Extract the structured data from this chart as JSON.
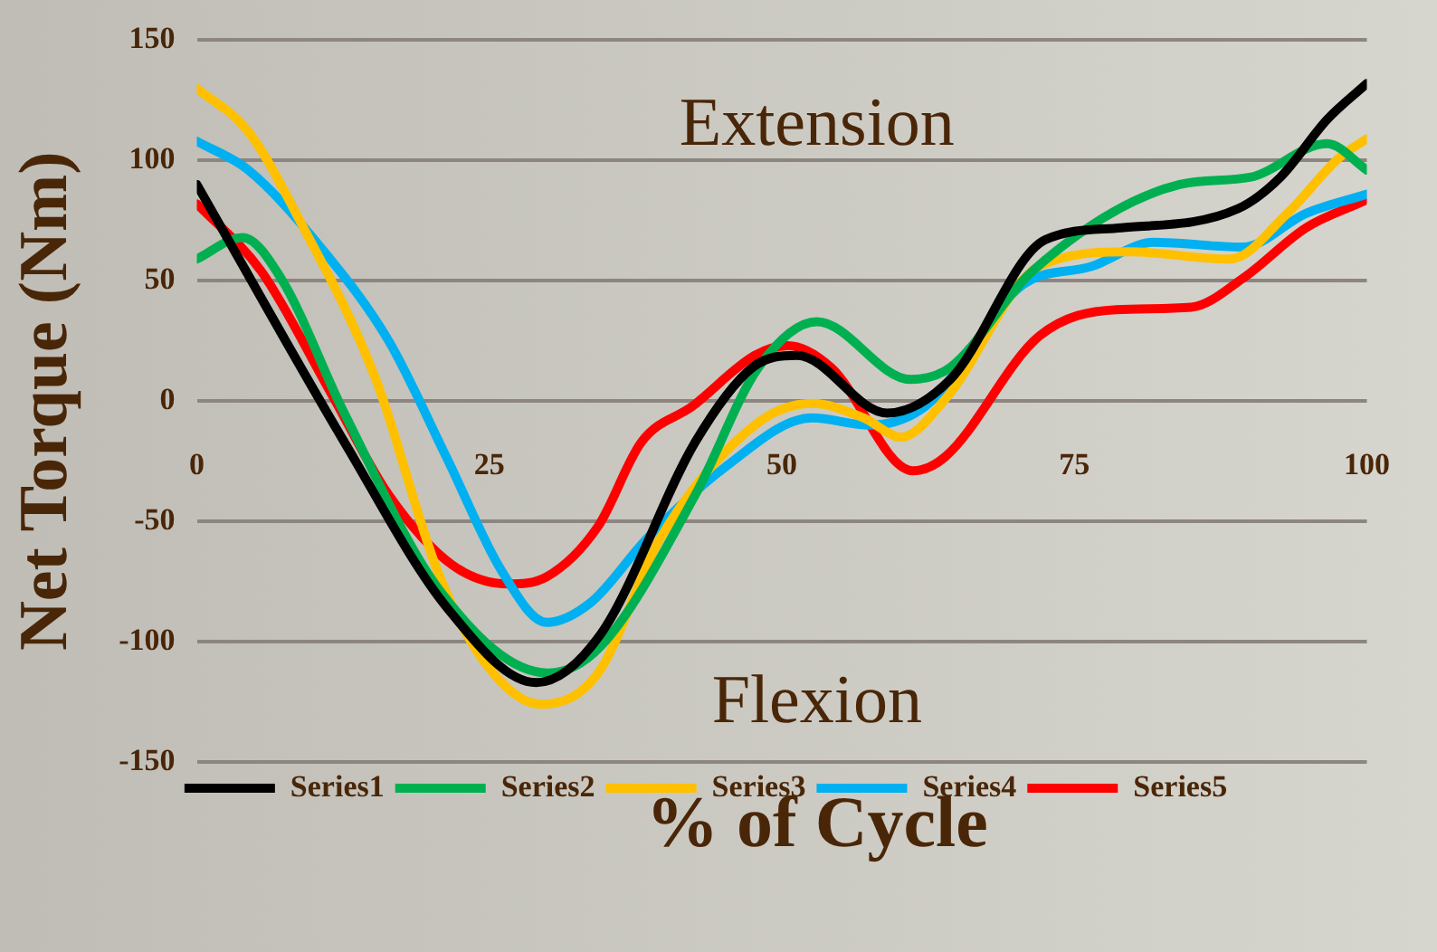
{
  "chart_data": {
    "type": "line",
    "xlabel": "% of Cycle",
    "ylabel": "Net Torque (Nm)",
    "annotations": [
      "Extension",
      "Flexion"
    ],
    "xlim": [
      0,
      100
    ],
    "xticks": [
      0,
      25,
      50,
      75,
      100
    ],
    "ylim": [
      -150,
      150
    ],
    "yticks": [
      -150,
      -100,
      -50,
      0,
      50,
      100,
      150
    ],
    "grid": "y",
    "legend": "bottom",
    "marker": "none",
    "line_style": "solid",
    "series": [
      {
        "name": "Series1",
        "color": "#000000",
        "x": [
          0,
          12.6,
          21.4,
          29,
          34.5,
          42.6,
          47.5,
          51.3,
          59,
          64.4,
          72.5,
          79,
          89,
          92.6,
          96.6,
          100
        ],
        "values": [
          90,
          -17,
          -86,
          -117,
          -97,
          -17,
          14,
          19,
          -5,
          9,
          67,
          72,
          80,
          93,
          117,
          132
        ]
      },
      {
        "name": "Series2",
        "color": "#00b050",
        "x": [
          0,
          3.9,
          7.2,
          12.6,
          20.8,
          30,
          34.5,
          42.6,
          48,
          53,
          61,
          64.4,
          71.4,
          84,
          90,
          96.6,
          100
        ],
        "values": [
          59,
          68,
          51,
          -5,
          -79,
          -113,
          -102,
          -39,
          14,
          33,
          9,
          14,
          54,
          90,
          93,
          107,
          96
        ]
      },
      {
        "name": "Series3",
        "color": "#ffc000",
        "x": [
          0,
          4.4,
          8.8,
          15.3,
          20.6,
          24.5,
          29.4,
          34.3,
          39.6,
          47.7,
          52.6,
          57,
          60.2,
          64,
          72,
          79.7,
          88.3,
          93.2,
          97.6,
          100
        ],
        "values": [
          130,
          112,
          75,
          9,
          -71,
          -108,
          -126,
          -113,
          -57,
          -10,
          -1,
          -7,
          -15,
          1,
          56,
          62,
          59,
          78,
          101,
          109
        ]
      },
      {
        "name": "Series4",
        "color": "#00b0f0",
        "x": [
          0,
          4.4,
          10.9,
          16.4,
          21.3,
          26.1,
          29.9,
          33.6,
          38.5,
          45,
          52.6,
          57.5,
          62.3,
          70.5,
          76.5,
          81.8,
          89.4,
          94.8,
          100
        ],
        "values": [
          108,
          96,
          62,
          25,
          -23,
          -71,
          -92,
          -84,
          -57,
          -28,
          -7,
          -10,
          -2,
          48,
          56,
          66,
          64,
          78,
          86
        ]
      },
      {
        "name": "Series5",
        "color": "#ff0000",
        "x": [
          0,
          5.5,
          11.5,
          16.4,
          21.8,
          26.6,
          29.9,
          34.3,
          38,
          42.4,
          47.7,
          50.5,
          54.2,
          61.2,
          64,
          72,
          78.6,
          85,
          89.4,
          94.8,
          99.7
        ],
        "values": [
          82,
          54,
          3,
          -39,
          -68,
          -76,
          -73,
          -52,
          -17,
          -2,
          19,
          23,
          14,
          -29,
          -23,
          27,
          38,
          39,
          51,
          72,
          83
        ]
      }
    ]
  }
}
